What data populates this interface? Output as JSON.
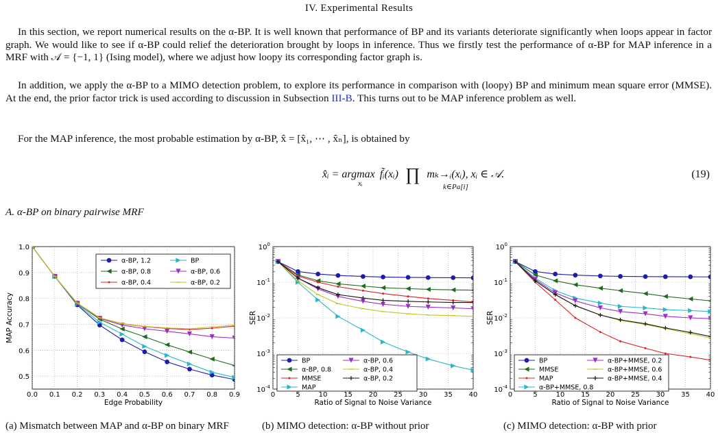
{
  "section_title": "IV. Experimental Results",
  "paragraphs": [
    "In this section, we report numerical results on the α-BP. It is well known that performance of BP and its variants deteriorate significantly when loops appear in factor graph. We would like to see if α-BP could relief the deterioration brought by loops in inference. Thus we firstly test the performance of α-BP for MAP inference in a MRF with 𝒜 = {−1, 1} (Ising model), where we adjust how loopy its corresponding factor graph is.",
    "In addition, we apply the α-BP to a MIMO detection problem, to explore its performance in comparison with (loopy) BP and minimum mean square error (MMSE). At the end, the prior factor trick is used according to discussion in Subsection",
    "III-B",
    ". This turns out to be MAP inference problem as well.",
    "For the MAP inference, the most probable estimation by α-BP, x̂ = [x̂₁, ⋯ , x̂ₙ], is obtained by"
  ],
  "equation": {
    "text": "x̂ᵢ = argmax f̃ᵢ(xᵢ) ∏ mₖ→ᵢ(xᵢ), xᵢ ∈ 𝒜.",
    "lhs": "x̂ᵢ = argmax",
    "under": "xᵢ",
    "mid": "f̃ᵢ(xᵢ)",
    "prod": "∏",
    "prod_under": "k∈Pa[i]",
    "rhs": "mₖ→ᵢ(xᵢ), xᵢ ∈ 𝒜.",
    "number": "(19)"
  },
  "subsection_title": "A. α-BP on binary pairwise MRF",
  "captions": {
    "a": "(a) Mismatch between MAP and α-BP on binary MRF",
    "b": "(b) MIMO detection: α-BP without prior",
    "c": "(c) MIMO detection: α-BP with prior"
  },
  "chart_data": [
    {
      "type": "line",
      "xlabel": "Edge Probability",
      "ylabel": "MAP Accuracy",
      "xlim": [
        0,
        0.9
      ],
      "ylim": [
        0.45,
        1.0
      ],
      "xticks": [
        "0.0",
        "0.1",
        "0.2",
        "0.3",
        "0.4",
        "0.5",
        "0.6",
        "0.7",
        "0.8",
        "0.9"
      ],
      "yticks": [
        "0.5",
        "0.6",
        "0.7",
        "0.8",
        "0.9",
        "1.0"
      ],
      "grid": true,
      "legend": "top-right",
      "x": [
        0.0,
        0.1,
        0.2,
        0.3,
        0.4,
        0.5,
        0.6,
        0.7,
        0.8,
        0.9
      ],
      "series": [
        {
          "name": "α-BP, 1.2",
          "color": "#1c1caf",
          "marker": "circle",
          "values": [
            1.0,
            0.885,
            0.775,
            0.697,
            0.64,
            0.594,
            0.555,
            0.527,
            0.504,
            0.487
          ]
        },
        {
          "name": "BP",
          "color": "#27b7c9",
          "marker": "tri-right",
          "values": [
            1.0,
            0.885,
            0.778,
            0.708,
            0.662,
            0.615,
            0.58,
            0.547,
            0.515,
            0.495
          ]
        },
        {
          "name": "α-BP, 0.8",
          "color": "#1f6b1f",
          "marker": "tri-left",
          "values": [
            1.0,
            0.885,
            0.78,
            0.72,
            0.682,
            0.652,
            0.621,
            0.593,
            0.566,
            0.541
          ]
        },
        {
          "name": "α-BP, 0.6",
          "color": "#9b2fc7",
          "marker": "tri-down",
          "values": [
            1.0,
            0.885,
            0.781,
            0.723,
            0.697,
            0.683,
            0.673,
            0.663,
            0.652,
            0.647
          ]
        },
        {
          "name": "α-BP, 0.4",
          "color": "#e0201c",
          "marker": "dot",
          "values": [
            1.0,
            0.885,
            0.782,
            0.725,
            0.702,
            0.691,
            0.684,
            0.68,
            0.685,
            0.693
          ]
        },
        {
          "name": "α-BP, 0.2",
          "color": "#c5c526",
          "marker": "dash",
          "values": [
            1.0,
            0.885,
            0.782,
            0.725,
            0.703,
            0.692,
            0.686,
            0.683,
            0.69,
            0.697
          ]
        }
      ]
    },
    {
      "type": "line",
      "xlabel": "Ratio of Signal to Noise Variance",
      "ylabel": "SER",
      "xlim": [
        0,
        40
      ],
      "ylim": [
        0.0001,
        1
      ],
      "yscale": "log",
      "xticks": [
        "0",
        "5",
        "10",
        "15",
        "20",
        "25",
        "30",
        "35",
        "40"
      ],
      "yticks": [
        "10^-4",
        "10^-3",
        "10^-2",
        "10^-1",
        "10^0"
      ],
      "grid": true,
      "legend": "bottom",
      "x": [
        1,
        5,
        9,
        13,
        18,
        22,
        27,
        31,
        36,
        40
      ],
      "series": [
        {
          "name": "BP",
          "color": "#1c1caf",
          "marker": "circle",
          "values": [
            0.38,
            0.2,
            0.17,
            0.155,
            0.145,
            0.14,
            0.137,
            0.135,
            0.134,
            0.133
          ]
        },
        {
          "name": "α-BP, 0.8",
          "color": "#1f6b1f",
          "marker": "tri-left",
          "values": [
            0.38,
            0.16,
            0.11,
            0.09,
            0.078,
            0.07,
            0.066,
            0.063,
            0.061,
            0.06
          ]
        },
        {
          "name": "MMSE",
          "color": "#e0201c",
          "marker": "dot",
          "values": [
            0.38,
            0.15,
            0.1,
            0.075,
            0.058,
            0.048,
            0.04,
            0.035,
            0.031,
            0.028
          ]
        },
        {
          "name": "MAP",
          "color": "#27b7c9",
          "marker": "tri-right",
          "values": [
            0.38,
            0.1,
            0.032,
            0.011,
            0.0045,
            0.0021,
            0.0011,
            0.0007,
            0.00045,
            0.00034
          ]
        },
        {
          "name": "α-BP, 0.6",
          "color": "#9b2fc7",
          "marker": "tri-down",
          "values": [
            0.38,
            0.13,
            0.065,
            0.04,
            0.029,
            0.024,
            0.021,
            0.02,
            0.019,
            0.018
          ]
        },
        {
          "name": "α-BP, 0.4",
          "color": "#c5c526",
          "marker": "dash",
          "values": [
            0.38,
            0.11,
            0.045,
            0.025,
            0.018,
            0.015,
            0.013,
            0.012,
            0.0115,
            0.011
          ]
        },
        {
          "name": "α-BP, 0.2",
          "color": "#111111",
          "marker": "plus",
          "values": [
            0.38,
            0.13,
            0.07,
            0.045,
            0.036,
            0.031,
            0.029,
            0.028,
            0.027,
            0.027
          ]
        }
      ]
    },
    {
      "type": "line",
      "xlabel": "Ratio of Signal to Noise Variance",
      "ylabel": "SER",
      "xlim": [
        0,
        40
      ],
      "ylim": [
        0.0001,
        1
      ],
      "yscale": "log",
      "xticks": [
        "0",
        "5",
        "10",
        "15",
        "20",
        "25",
        "30",
        "35",
        "40"
      ],
      "yticks": [
        "10^-4",
        "10^-3",
        "10^-2",
        "10^-1",
        "10^0"
      ],
      "grid": true,
      "legend": "bottom",
      "x": [
        1,
        5,
        9,
        13,
        18,
        22,
        27,
        31,
        36,
        40
      ],
      "series": [
        {
          "name": "BP",
          "color": "#1c1caf",
          "marker": "circle",
          "values": [
            0.38,
            0.2,
            0.17,
            0.158,
            0.15,
            0.146,
            0.144,
            0.143,
            0.142,
            0.141
          ]
        },
        {
          "name": "MMSE",
          "color": "#1f6b1f",
          "marker": "tri-left",
          "values": [
            0.38,
            0.16,
            0.11,
            0.085,
            0.068,
            0.058,
            0.048,
            0.04,
            0.034,
            0.03
          ]
        },
        {
          "name": "MAP",
          "color": "#e0201c",
          "marker": "dot",
          "values": [
            0.38,
            0.1,
            0.032,
            0.01,
            0.004,
            0.0022,
            0.0014,
            0.001,
            0.0008,
            0.00065
          ]
        },
        {
          "name": "α-BP+MMSE, 0.8",
          "color": "#27b7c9",
          "marker": "tri-right",
          "values": [
            0.38,
            0.13,
            0.058,
            0.036,
            0.026,
            0.021,
            0.019,
            0.017,
            0.016,
            0.015
          ]
        },
        {
          "name": "α-BP+MMSE, 0.2",
          "color": "#9b2fc7",
          "marker": "tri-down",
          "values": [
            0.38,
            0.12,
            0.05,
            0.03,
            0.019,
            0.015,
            0.013,
            0.011,
            0.01,
            0.0095
          ]
        },
        {
          "name": "α-BP+MMSE, 0.6",
          "color": "#c5c526",
          "marker": "dash",
          "values": [
            0.38,
            0.11,
            0.045,
            0.022,
            0.012,
            0.0085,
            0.0065,
            0.005,
            0.0036,
            0.0027
          ]
        },
        {
          "name": "α-BP+MMSE, 0.4",
          "color": "#111111",
          "marker": "plus",
          "values": [
            0.38,
            0.11,
            0.045,
            0.022,
            0.012,
            0.0088,
            0.0068,
            0.0052,
            0.0039,
            0.003
          ]
        }
      ]
    }
  ]
}
